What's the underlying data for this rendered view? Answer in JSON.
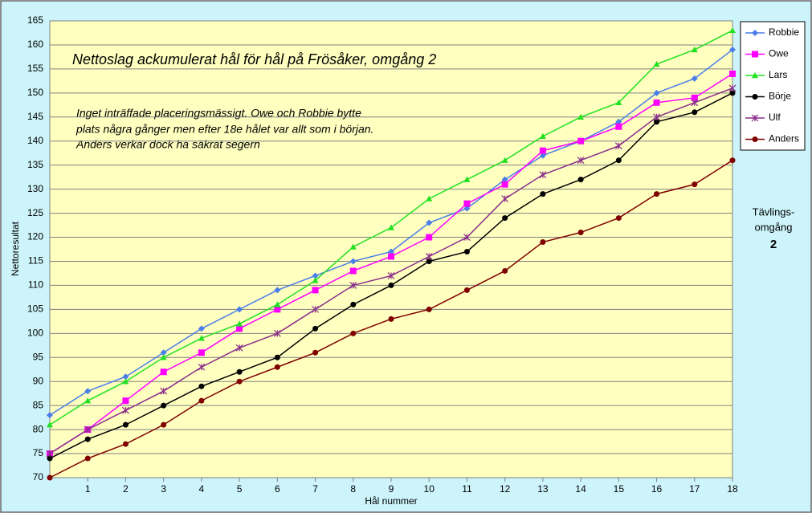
{
  "chart_data": {
    "type": "line",
    "title": "Nettoslag ackumulerat hål för hål på Frösåker, omgång 2",
    "note": [
      "Inget inträffade placeringsmässigt. Owe och Robbie bytte",
      "plats några gånger men efter 18e hålet var allt som i början.",
      "Anders verkar dock ha säkrat segern"
    ],
    "side_note": [
      "Tävlings-",
      "omgång",
      "2"
    ],
    "x_label": "Hål nummer",
    "y_label": "Nettoresultat",
    "x": [
      0,
      1,
      2,
      3,
      4,
      5,
      6,
      7,
      8,
      9,
      10,
      11,
      12,
      13,
      14,
      15,
      16,
      17,
      18
    ],
    "xlim": [
      0,
      18
    ],
    "xticks": [
      1,
      2,
      3,
      4,
      5,
      6,
      7,
      8,
      9,
      10,
      11,
      12,
      13,
      14,
      15,
      16,
      17,
      18
    ],
    "ylim": [
      70,
      165
    ],
    "yticks": [
      70,
      75,
      80,
      85,
      90,
      95,
      100,
      105,
      110,
      115,
      120,
      125,
      130,
      135,
      140,
      145,
      150,
      155,
      160,
      165
    ],
    "grid": true,
    "legend": "right",
    "series": [
      {
        "name": "Robbie",
        "color": "#4a7ee8",
        "marker": "diamond",
        "values": [
          83,
          88,
          91,
          96,
          101,
          105,
          109,
          112,
          115,
          117,
          123,
          126,
          132,
          137,
          140,
          144,
          150,
          153,
          159
        ]
      },
      {
        "name": "Owe",
        "color": "#ff00ff",
        "marker": "square",
        "values": [
          75,
          80,
          86,
          92,
          96,
          101,
          105,
          109,
          113,
          116,
          120,
          127,
          131,
          138,
          140,
          143,
          148,
          149,
          154
        ]
      },
      {
        "name": "Lars",
        "color": "#22e022",
        "marker": "triangle",
        "values": [
          81,
          86,
          90,
          95,
          99,
          102,
          106,
          111,
          118,
          122,
          128,
          132,
          136,
          141,
          145,
          148,
          156,
          159,
          163
        ]
      },
      {
        "name": "Börje",
        "color": "#000000",
        "marker": "circle",
        "values": [
          74,
          78,
          81,
          85,
          89,
          92,
          95,
          101,
          106,
          110,
          115,
          117,
          124,
          129,
          132,
          136,
          144,
          146,
          150
        ]
      },
      {
        "name": "Ulf",
        "color": "#8a2d8a",
        "marker": "star",
        "values": [
          75,
          80,
          84,
          88,
          93,
          97,
          100,
          105,
          110,
          112,
          116,
          120,
          128,
          133,
          136,
          139,
          145,
          148,
          151
        ]
      },
      {
        "name": "Anders",
        "color": "#800000",
        "marker": "circle",
        "values": [
          70,
          74,
          77,
          81,
          86,
          90,
          93,
          96,
          100,
          103,
          105,
          109,
          113,
          119,
          121,
          124,
          129,
          131,
          136
        ]
      }
    ]
  }
}
